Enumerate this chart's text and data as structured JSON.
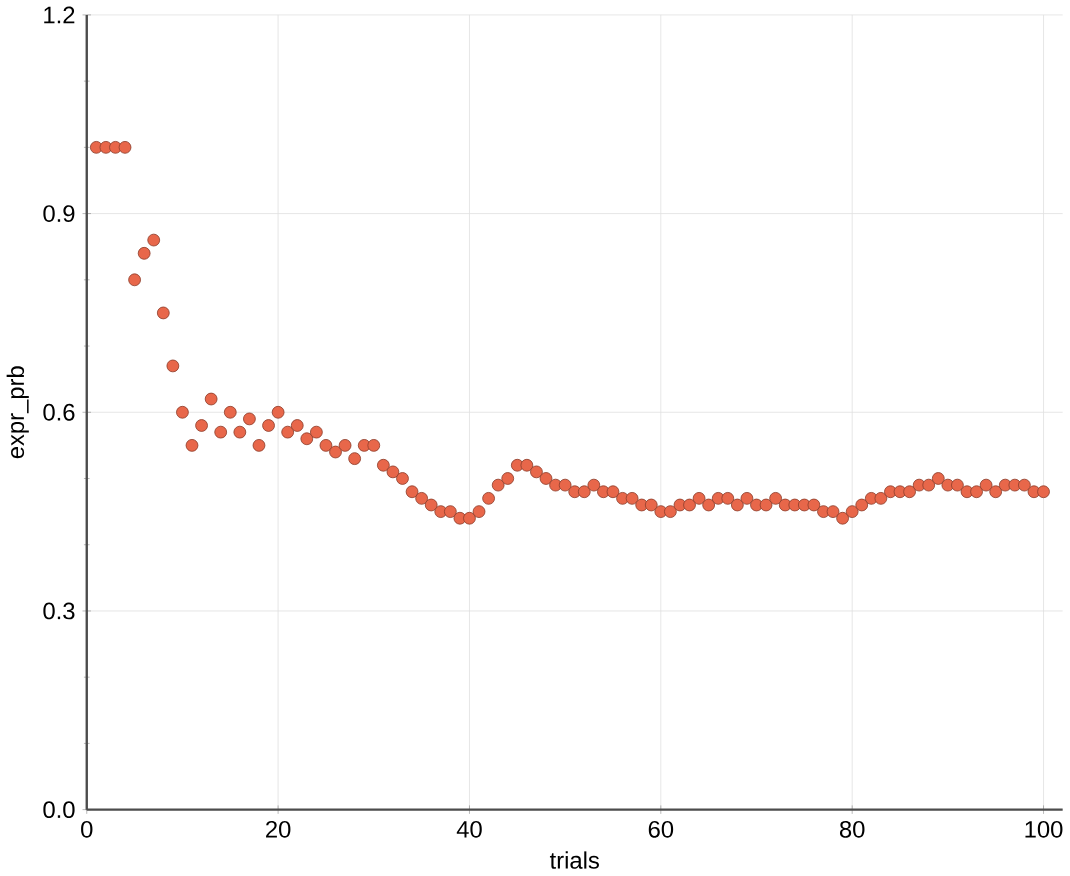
{
  "chart_data": {
    "type": "scatter",
    "xlabel": "trials",
    "ylabel": "expr_prb",
    "x": [
      1,
      2,
      3,
      4,
      5,
      6,
      7,
      8,
      9,
      10,
      11,
      12,
      13,
      14,
      15,
      16,
      17,
      18,
      19,
      20,
      21,
      22,
      23,
      24,
      25,
      26,
      27,
      28,
      29,
      30,
      31,
      32,
      33,
      34,
      35,
      36,
      37,
      38,
      39,
      40,
      41,
      42,
      43,
      44,
      45,
      46,
      47,
      48,
      49,
      50,
      51,
      52,
      53,
      54,
      55,
      56,
      57,
      58,
      59,
      60,
      61,
      62,
      63,
      64,
      65,
      66,
      67,
      68,
      69,
      70,
      71,
      72,
      73,
      74,
      75,
      76,
      77,
      78,
      79,
      80,
      81,
      82,
      83,
      84,
      85,
      86,
      87,
      88,
      89,
      90,
      91,
      92,
      93,
      94,
      95,
      96,
      97,
      98,
      99,
      100
    ],
    "series": [
      {
        "color": "#e8674a",
        "values": [
          1.0,
          1.0,
          1.0,
          1.0,
          0.8,
          0.84,
          0.86,
          0.75,
          0.67,
          0.6,
          0.55,
          0.58,
          0.62,
          0.57,
          0.6,
          0.57,
          0.59,
          0.55,
          0.58,
          0.6,
          0.57,
          0.58,
          0.56,
          0.57,
          0.55,
          0.54,
          0.55,
          0.53,
          0.55,
          0.55,
          0.52,
          0.51,
          0.5,
          0.48,
          0.47,
          0.46,
          0.45,
          0.45,
          0.44,
          0.44,
          0.45,
          0.47,
          0.49,
          0.5,
          0.52,
          0.52,
          0.51,
          0.5,
          0.49,
          0.49,
          0.48,
          0.48,
          0.49,
          0.48,
          0.48,
          0.47,
          0.47,
          0.46,
          0.46,
          0.45,
          0.45,
          0.46,
          0.46,
          0.47,
          0.46,
          0.47,
          0.47,
          0.46,
          0.47,
          0.46,
          0.46,
          0.47,
          0.46,
          0.46,
          0.46,
          0.46,
          0.45,
          0.45,
          0.44,
          0.45,
          0.46,
          0.47,
          0.47,
          0.48,
          0.48,
          0.48,
          0.49,
          0.49,
          0.5,
          0.49,
          0.49,
          0.48,
          0.48,
          0.49,
          0.48,
          0.49,
          0.49,
          0.49,
          0.48,
          0.48
        ]
      }
    ],
    "xlim": [
      0,
      102
    ],
    "ylim": [
      0,
      1.2
    ],
    "xticks": [
      0,
      20,
      40,
      60,
      80,
      100
    ],
    "yticks": [
      {
        "value": 0,
        "label": "0.0"
      },
      {
        "value": 0.3,
        "label": "0.3"
      },
      {
        "value": 0.6,
        "label": "0.6"
      },
      {
        "value": 0.9,
        "label": "0.9"
      },
      {
        "value": 1.2,
        "label": "1.2"
      }
    ],
    "grid": true,
    "marker": "circle"
  }
}
